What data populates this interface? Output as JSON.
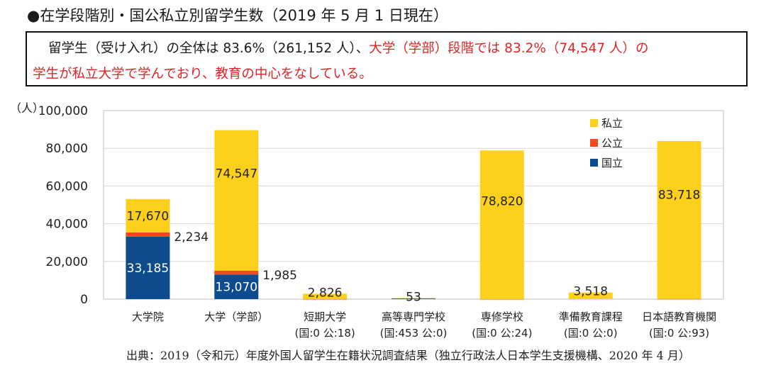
{
  "heading": "●在学段階別・国公私立別留学生数（2019 年 5 月 1 日現在）",
  "summary": {
    "line1_black": "留学生（受け入れ）の全体は 83.6%（261,152 人）、",
    "line1_red": "大学（学部）段階では 83.2%（74,547 人）の",
    "line2_red": "学生が私立大学で学んでおり、教育の中心をなしている。"
  },
  "unit_label": "（人）",
  "source": "出典：2019（令和元）年度外国人留学生在籍状況調査結果（独立行政法人日本学生支援機構、2020 年 4 月）",
  "colors": {
    "private": "#fdd01b",
    "public": "#f04a1d",
    "national": "#0d4b8c",
    "grid": "#d9d9d9",
    "axis": "#bfbfbf"
  },
  "chart_data": {
    "type": "bar",
    "stacked": true,
    "ylim": [
      0,
      100000
    ],
    "yticks": [
      "0",
      "20,000",
      "40,000",
      "60,000",
      "80,000",
      "100,000"
    ],
    "yticks_values": [
      0,
      20000,
      40000,
      60000,
      80000,
      100000
    ],
    "categories": [
      {
        "label": "大学院",
        "sublabel": ""
      },
      {
        "label": "大学（学部）",
        "sublabel": ""
      },
      {
        "label": "短期大学",
        "sublabel": "(国:0 公:18)"
      },
      {
        "label": "高等専門学校",
        "sublabel": "(国:453 公:0)"
      },
      {
        "label": "専修学校",
        "sublabel": "(国:0 公:24)"
      },
      {
        "label": "準備教育課程",
        "sublabel": "(国:0 公:0)"
      },
      {
        "label": "日本語教育機関",
        "sublabel": "(国:0 公:93)"
      }
    ],
    "series": [
      {
        "name": "国立",
        "values": [
          33185,
          13070,
          0,
          453,
          0,
          0,
          0
        ]
      },
      {
        "name": "公立",
        "values": [
          2234,
          1985,
          18,
          0,
          24,
          0,
          93
        ]
      },
      {
        "name": "私立",
        "values": [
          17670,
          74547,
          2826,
          53,
          78820,
          3518,
          83718
        ]
      }
    ],
    "data_labels": [
      {
        "text": "33,185",
        "category": 0,
        "series": "国立"
      },
      {
        "text": "17,670",
        "category": 0,
        "series": "私立"
      },
      {
        "text": "2,234",
        "category": 0,
        "series": "公立"
      },
      {
        "text": "13,070",
        "category": 1,
        "series": "国立"
      },
      {
        "text": "74,547",
        "category": 1,
        "series": "私立"
      },
      {
        "text": "1,985",
        "category": 1,
        "series": "公立"
      },
      {
        "text": "2,826",
        "category": 2,
        "series": "私立"
      },
      {
        "text": "53",
        "category": 3,
        "series": "私立"
      },
      {
        "text": "78,820",
        "category": 4,
        "series": "私立"
      },
      {
        "text": "3,518",
        "category": 5,
        "series": "私立"
      },
      {
        "text": "83,718",
        "category": 6,
        "series": "私立"
      }
    ],
    "legend": [
      "私立",
      "公立",
      "国立"
    ],
    "legend_position": "top-right",
    "grid": true
  }
}
